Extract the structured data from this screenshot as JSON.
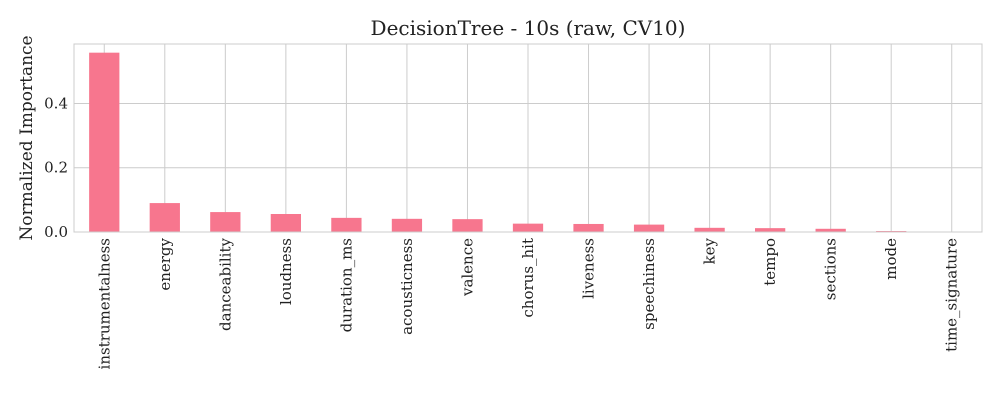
{
  "chart_data": {
    "type": "bar",
    "title": "DecisionTree - 10s (raw, CV10)",
    "xlabel": "",
    "ylabel": "Normalized Importance",
    "categories": [
      "instrumentalness",
      "energy",
      "danceability",
      "loudness",
      "duration_ms",
      "acousticness",
      "valence",
      "chorus_hit",
      "liveness",
      "speechiness",
      "key",
      "tempo",
      "sections",
      "mode",
      "time_signature"
    ],
    "values": [
      0.558,
      0.09,
      0.062,
      0.056,
      0.044,
      0.041,
      0.04,
      0.026,
      0.025,
      0.023,
      0.013,
      0.012,
      0.01,
      0.003,
      0.0
    ],
    "yticks": [
      0.0,
      0.2,
      0.4
    ],
    "ytick_labels": [
      "0.0",
      "0.2",
      "0.4"
    ],
    "ylim": [
      0,
      0.585
    ],
    "grid": true,
    "bar_color": "#f7768e",
    "grid_color": "#cccccc"
  }
}
